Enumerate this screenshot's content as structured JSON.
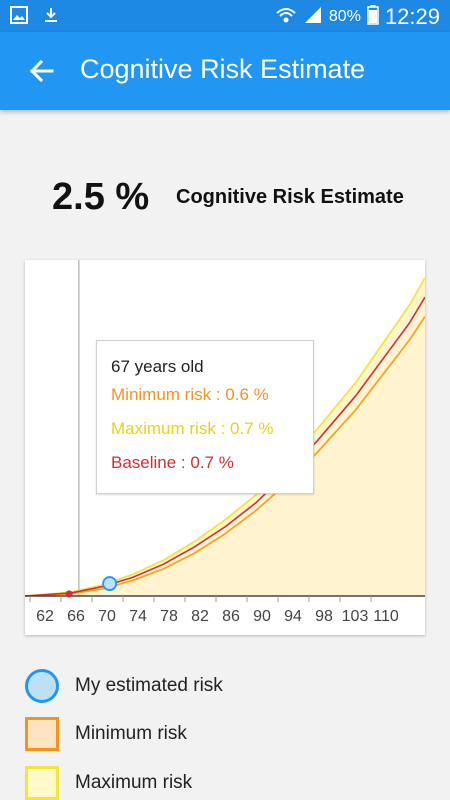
{
  "status_bar": {
    "battery": "80%",
    "time": "12:29"
  },
  "app_bar": {
    "title": "Cognitive Risk Estimate"
  },
  "summary": {
    "value": "2.5 %",
    "label": "Cognitive Risk Estimate"
  },
  "tooltip": {
    "age": "67 years old",
    "min": "Minimum risk : 0.6 %",
    "max": "Maximum risk : 0.7 %",
    "base": "Baseline : 0.7 %"
  },
  "colors": {
    "primary": "#2196f3",
    "min": "#f5a623",
    "max": "#f5e43a",
    "baseline": "#d32f2f",
    "my_risk": "#2196f3",
    "fill": "#fff3d0"
  },
  "chart_data": {
    "type": "line",
    "x_ticks": [
      "62",
      "66",
      "70",
      "74",
      "78",
      "82",
      "86",
      "90",
      "94",
      "98",
      "103",
      "110"
    ],
    "xlim": [
      60,
      112
    ],
    "ylim": [
      0,
      42
    ],
    "series": [
      {
        "name": "Minimum risk",
        "x": [
          60,
          66,
          70,
          74,
          78,
          82,
          86,
          90,
          94,
          98,
          103,
          110,
          112
        ],
        "y": [
          0,
          0.3,
          0.9,
          2,
          3.5,
          5.5,
          8,
          11,
          14.5,
          18.5,
          24,
          33,
          36
        ]
      },
      {
        "name": "Maximum risk",
        "x": [
          60,
          66,
          70,
          74,
          78,
          82,
          86,
          90,
          94,
          98,
          103,
          110,
          112
        ],
        "y": [
          0,
          0.5,
          1.4,
          2.8,
          4.6,
          7,
          9.8,
          13,
          17,
          21.5,
          27.5,
          37.5,
          41
        ]
      },
      {
        "name": "Baseline",
        "x": [
          60,
          66,
          70,
          74,
          78,
          82,
          86,
          90,
          94,
          98,
          103,
          110,
          112
        ],
        "y": [
          0,
          0.4,
          1.2,
          2.4,
          4.1,
          6.3,
          8.9,
          12,
          15.8,
          20,
          25.8,
          35.2,
          38.5
        ]
      }
    ],
    "markers": [
      {
        "name": "My estimated risk",
        "x": 71,
        "y": 1.6
      },
      {
        "name": "Baseline point",
        "x": 66,
        "y": 0.4
      }
    ],
    "selected_x": 67
  },
  "legend": [
    {
      "label": "My estimated risk",
      "shape": "circle"
    },
    {
      "label": "Minimum risk",
      "shape": "square"
    },
    {
      "label": "Maximum risk",
      "shape": "square"
    }
  ]
}
